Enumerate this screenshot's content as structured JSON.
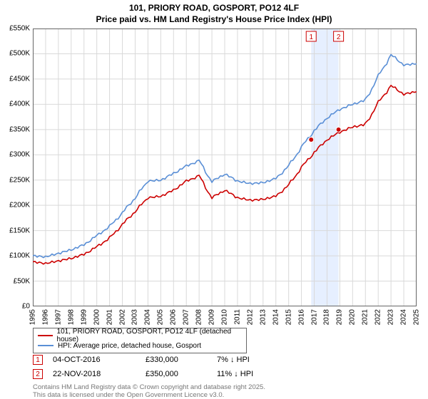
{
  "title_line1": "101, PRIORY ROAD, GOSPORT, PO12 4LF",
  "title_line2": "Price paid vs. HM Land Registry's House Price Index (HPI)",
  "chart": {
    "type": "line",
    "x_years": [
      1995,
      1996,
      1997,
      1998,
      1999,
      2000,
      2001,
      2002,
      2003,
      2004,
      2005,
      2006,
      2007,
      2008,
      2009,
      2010,
      2011,
      2012,
      2013,
      2014,
      2015,
      2016,
      2017,
      2018,
      2019,
      2020,
      2021,
      2022,
      2023,
      2024,
      2025
    ],
    "ylim": [
      0,
      550000
    ],
    "ytick_step": 50000,
    "ytick_labels": [
      "£0",
      "£50K",
      "£100K",
      "£150K",
      "£200K",
      "£250K",
      "£300K",
      "£350K",
      "£400K",
      "£450K",
      "£500K",
      "£550K"
    ],
    "grid_color": "#d9d9d9",
    "background": "#ffffff",
    "border_color": "#666666",
    "line_width": 1.6,
    "series": {
      "red": {
        "label": "101, PRIORY ROAD, GOSPORT, PO12 4LF (detached house)",
        "color": "#cc0000",
        "values_by_year": [
          88,
          85,
          90,
          95,
          103,
          118,
          135,
          162,
          188,
          215,
          218,
          230,
          248,
          258,
          215,
          230,
          215,
          210,
          212,
          218,
          240,
          275,
          305,
          330,
          345,
          355,
          360,
          403,
          437,
          420,
          425
        ]
      },
      "blue": {
        "label": "HPI: Average price, detached house, Gosport",
        "color": "#5a8fd6",
        "values_by_year": [
          100,
          98,
          105,
          112,
          122,
          140,
          158,
          185,
          215,
          248,
          250,
          263,
          278,
          288,
          247,
          262,
          248,
          243,
          245,
          253,
          278,
          315,
          348,
          373,
          390,
          400,
          408,
          455,
          498,
          478,
          480
        ]
      }
    },
    "highlight_band": {
      "from_year": 2016.76,
      "to_year": 2018.9,
      "color": "#e6efff"
    },
    "markers": [
      {
        "n": "1",
        "year": 2016.76,
        "value": 330
      },
      {
        "n": "2",
        "year": 2018.9,
        "value": 350
      }
    ]
  },
  "sales": [
    {
      "n": "1",
      "date": "04-OCT-2016",
      "price": "£330,000",
      "diff": "7% ↓ HPI"
    },
    {
      "n": "2",
      "date": "22-NOV-2018",
      "price": "£350,000",
      "diff": "11% ↓ HPI"
    }
  ],
  "footer1": "Contains HM Land Registry data © Crown copyright and database right 2025.",
  "footer2": "This data is licensed under the Open Government Licence v3.0."
}
